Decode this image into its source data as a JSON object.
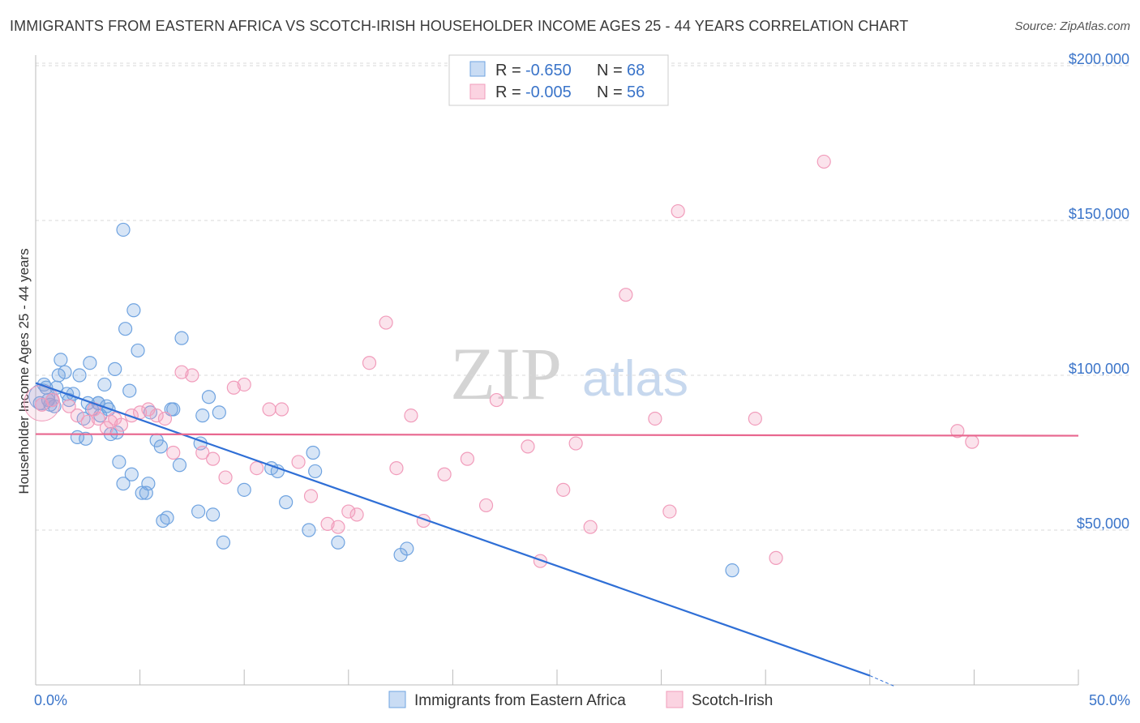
{
  "header": {
    "title": "IMMIGRANTS FROM EASTERN AFRICA VS SCOTCH-IRISH HOUSEHOLDER INCOME AGES 25 - 44 YEARS CORRELATION CHART",
    "source": "Source: ZipAtlas.com"
  },
  "watermark": {
    "zip": "ZIP",
    "atlas": "atlas"
  },
  "colors": {
    "blue": "#6fa3e0",
    "blue_line": "#2f6fd6",
    "pink": "#f19cbb",
    "pink_line": "#e8678f",
    "tick_text": "#3a74c9",
    "grid": "#d9d9d9"
  },
  "legend": {
    "rows": [
      {
        "r_label": "R =",
        "r_value": "-0.650",
        "n_label": "N =",
        "n_value": "68"
      },
      {
        "r_label": "R =",
        "r_value": "-0.005",
        "n_label": "N =",
        "n_value": "56"
      }
    ]
  },
  "bottom_legend": [
    "Immigrants from Eastern Africa",
    "Scotch-Irish"
  ],
  "chart_data": {
    "type": "scatter",
    "title": "IMMIGRANTS FROM EASTERN AFRICA VS SCOTCH-IRISH HOUSEHOLDER INCOME AGES 25 - 44 YEARS CORRELATION CHART",
    "xlabel": "",
    "ylabel": "Householder Income Ages 25 - 44 years",
    "xlim": [
      0,
      50
    ],
    "ylim": [
      0,
      210000
    ],
    "x_tick_labels": [
      "0.0%",
      "50.0%"
    ],
    "y_ticks": [
      50000,
      100000,
      150000,
      200000
    ],
    "y_tick_labels": [
      "$50,000",
      "$100,000",
      "$150,000",
      "$200,000"
    ],
    "grid": true,
    "legend_position": "top-center",
    "series": [
      {
        "name": "Immigrants from Eastern Africa",
        "color": "#6fa3e0",
        "trend": {
          "x": [
            0,
            40
          ],
          "y": [
            97500,
            3000
          ]
        },
        "points": [
          [
            0.2,
            91000
          ],
          [
            0.4,
            97000
          ],
          [
            0.5,
            96000
          ],
          [
            0.6,
            92000
          ],
          [
            0.7,
            90500
          ],
          [
            0.8,
            92000
          ],
          [
            0.9,
            90000
          ],
          [
            1.0,
            96000
          ],
          [
            1.1,
            100000
          ],
          [
            1.2,
            105000
          ],
          [
            1.4,
            101000
          ],
          [
            1.5,
            94000
          ],
          [
            1.6,
            92000
          ],
          [
            1.8,
            94000
          ],
          [
            2.0,
            80000
          ],
          [
            2.1,
            100000
          ],
          [
            2.3,
            86000
          ],
          [
            2.4,
            79500
          ],
          [
            2.5,
            91000
          ],
          [
            2.6,
            104000
          ],
          [
            2.7,
            89000
          ],
          [
            3.0,
            91000
          ],
          [
            3.1,
            87000
          ],
          [
            3.3,
            97000
          ],
          [
            3.4,
            90000
          ],
          [
            3.5,
            89000
          ],
          [
            3.6,
            81000
          ],
          [
            3.8,
            102000
          ],
          [
            3.9,
            81500
          ],
          [
            4.0,
            72000
          ],
          [
            4.2,
            65000
          ],
          [
            4.3,
            115000
          ],
          [
            4.5,
            95000
          ],
          [
            4.6,
            68000
          ],
          [
            4.7,
            121000
          ],
          [
            4.9,
            108000
          ],
          [
            5.1,
            62000
          ],
          [
            5.3,
            62000
          ],
          [
            5.4,
            65000
          ],
          [
            5.5,
            88000
          ],
          [
            5.8,
            79000
          ],
          [
            6.0,
            77000
          ],
          [
            6.1,
            53000
          ],
          [
            6.3,
            54000
          ],
          [
            6.5,
            89000
          ],
          [
            6.6,
            89000
          ],
          [
            6.9,
            71000
          ],
          [
            7.0,
            112000
          ],
          [
            7.8,
            56000
          ],
          [
            7.9,
            78000
          ],
          [
            8.0,
            87000
          ],
          [
            8.3,
            93000
          ],
          [
            8.5,
            55000
          ],
          [
            8.8,
            88000
          ],
          [
            9.0,
            46000
          ],
          [
            10.0,
            63000
          ],
          [
            11.3,
            70000
          ],
          [
            11.6,
            69000
          ],
          [
            12.0,
            59000
          ],
          [
            13.1,
            50000
          ],
          [
            13.3,
            75000
          ],
          [
            13.4,
            69000
          ],
          [
            14.5,
            46000
          ],
          [
            17.5,
            42000
          ],
          [
            17.8,
            44000
          ],
          [
            33.4,
            37000
          ],
          [
            3.0,
            91000
          ],
          [
            4.2,
            147000
          ]
        ]
      },
      {
        "name": "Scotch-Irish",
        "color": "#f19cbb",
        "trend": {
          "x": [
            0,
            50
          ],
          "y": [
            81000,
            81000
          ]
        },
        "points": [
          [
            0.3,
            90500
          ],
          [
            0.8,
            92000
          ],
          [
            1.6,
            90000
          ],
          [
            2.0,
            87000
          ],
          [
            2.5,
            85000
          ],
          [
            3.0,
            86000
          ],
          [
            3.4,
            83000
          ],
          [
            3.8,
            86000
          ],
          [
            4.1,
            84000
          ],
          [
            4.6,
            87000
          ],
          [
            5.0,
            88000
          ],
          [
            5.4,
            89000
          ],
          [
            5.8,
            87000
          ],
          [
            6.2,
            86000
          ],
          [
            6.6,
            75000
          ],
          [
            7.0,
            101000
          ],
          [
            7.5,
            100000
          ],
          [
            8.0,
            75000
          ],
          [
            8.5,
            73000
          ],
          [
            9.1,
            67000
          ],
          [
            9.5,
            96000
          ],
          [
            10.0,
            97000
          ],
          [
            10.6,
            70000
          ],
          [
            11.2,
            89000
          ],
          [
            11.8,
            89000
          ],
          [
            12.6,
            72000
          ],
          [
            13.2,
            61000
          ],
          [
            14.0,
            52000
          ],
          [
            14.5,
            51000
          ],
          [
            15.0,
            56000
          ],
          [
            15.4,
            55000
          ],
          [
            16.0,
            104000
          ],
          [
            16.8,
            117000
          ],
          [
            17.3,
            70000
          ],
          [
            18.0,
            87000
          ],
          [
            18.6,
            53000
          ],
          [
            19.6,
            68000
          ],
          [
            20.7,
            73000
          ],
          [
            21.6,
            58000
          ],
          [
            22.1,
            92000
          ],
          [
            23.6,
            77000
          ],
          [
            24.2,
            40000
          ],
          [
            25.3,
            63000
          ],
          [
            25.9,
            78000
          ],
          [
            26.6,
            51000
          ],
          [
            28.3,
            126000
          ],
          [
            29.7,
            86000
          ],
          [
            30.4,
            56000
          ],
          [
            30.8,
            153000
          ],
          [
            34.5,
            86000
          ],
          [
            35.5,
            41000
          ],
          [
            37.8,
            169000
          ],
          [
            44.2,
            82000
          ],
          [
            44.9,
            78500
          ],
          [
            3.6,
            85000
          ],
          [
            2.8,
            89000
          ]
        ]
      }
    ]
  }
}
